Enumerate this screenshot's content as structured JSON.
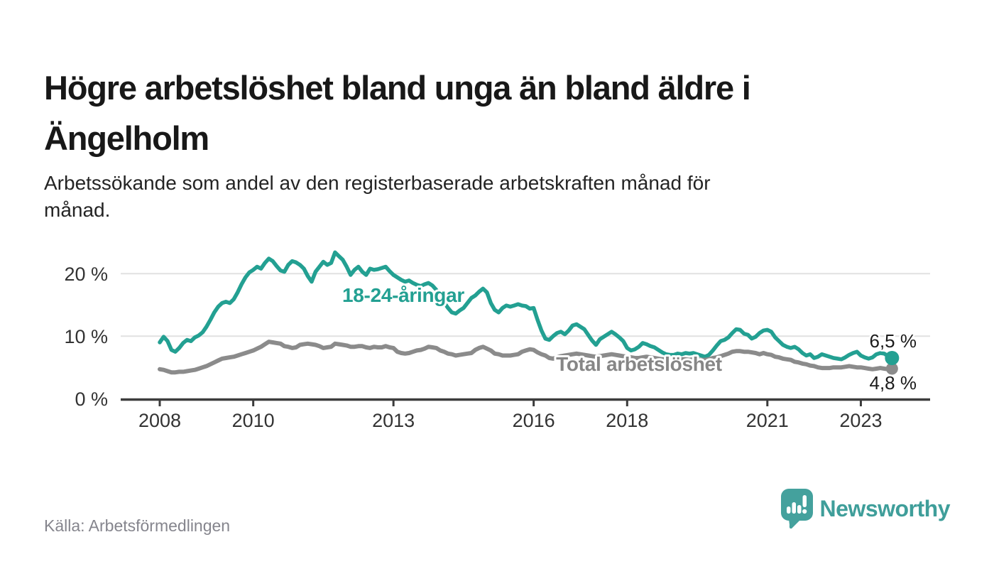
{
  "header": {
    "title": "Högre arbetslöshet bland unga än bland äldre i\nÄngelholm",
    "subtitle": "Arbetssökande som andel av den registerbaserade arbetskraften månad för\nmånad."
  },
  "footer": {
    "source": "Källa: Arbetsförmedlingen",
    "brand": "Newsworthy",
    "brand_color": "#44a19d"
  },
  "chart_data": {
    "type": "line",
    "title": "Högre arbetslöshet bland unga än bland äldre i Ängelholm",
    "subtitle": "Arbetssökande som andel av den registerbaserade arbetskraften månad för månad.",
    "unit": "%",
    "frequency": "monthly",
    "start": "2008-01",
    "end": "2023-09",
    "grid": "horizontal",
    "ylim": [
      0,
      24.5
    ],
    "x_tick_years": [
      2008,
      2010,
      2013,
      2016,
      2018,
      2021,
      2023
    ],
    "y_ticks": [
      {
        "value": 0,
        "label": "0 %"
      },
      {
        "value": 10,
        "label": "10 %"
      },
      {
        "value": 20,
        "label": "20 %"
      }
    ],
    "series": [
      {
        "name": "18-24-åringar",
        "color": "#23a092",
        "end_value": 6.5,
        "end_label": "6,5 %",
        "values": [
          9.0,
          9.9,
          9.2,
          7.8,
          7.5,
          8.1,
          8.9,
          9.4,
          9.2,
          9.8,
          10.1,
          10.6,
          11.5,
          12.6,
          13.8,
          14.7,
          15.3,
          15.5,
          15.3,
          15.9,
          17.0,
          18.3,
          19.4,
          20.2,
          20.6,
          21.1,
          20.8,
          21.7,
          22.4,
          22.0,
          21.2,
          20.5,
          20.3,
          21.4,
          22.0,
          21.8,
          21.4,
          20.8,
          19.6,
          18.7,
          20.3,
          21.1,
          21.9,
          21.4,
          21.7,
          23.4,
          22.8,
          22.2,
          21.1,
          19.8,
          20.6,
          21.1,
          20.3,
          19.8,
          20.8,
          20.6,
          20.7,
          20.9,
          21.1,
          20.4,
          19.8,
          19.4,
          19.0,
          18.7,
          18.9,
          18.5,
          18.2,
          18.0,
          18.3,
          18.5,
          18.1,
          17.4,
          16.4,
          15.4,
          14.5,
          13.8,
          13.6,
          14.1,
          14.5,
          15.3,
          16.1,
          16.5,
          17.1,
          17.6,
          17.0,
          15.3,
          14.2,
          13.8,
          14.5,
          14.9,
          14.7,
          14.9,
          15.1,
          14.9,
          14.8,
          14.4,
          14.5,
          12.6,
          10.9,
          9.6,
          9.4,
          10.0,
          10.5,
          10.7,
          10.3,
          10.9,
          11.7,
          11.9,
          11.5,
          11.1,
          10.2,
          9.3,
          8.6,
          9.5,
          9.9,
          10.3,
          10.7,
          10.3,
          9.8,
          9.2,
          8.1,
          7.7,
          7.9,
          8.3,
          8.9,
          8.7,
          8.4,
          8.2,
          7.8,
          7.4,
          7.1,
          7.0,
          7.0,
          7.2,
          7.1,
          7.3,
          7.2,
          7.3,
          7.1,
          6.9,
          6.7,
          7.0,
          7.7,
          8.5,
          9.2,
          9.4,
          9.8,
          10.5,
          11.1,
          11.0,
          10.4,
          10.2,
          9.6,
          9.9,
          10.5,
          10.9,
          11.0,
          10.7,
          9.8,
          9.2,
          8.6,
          8.3,
          8.1,
          8.3,
          7.9,
          7.3,
          6.9,
          7.1,
          6.5,
          6.7,
          7.1,
          6.9,
          6.7,
          6.5,
          6.4,
          6.3,
          6.6,
          7.0,
          7.3,
          7.5,
          6.9,
          6.6,
          6.4,
          6.6,
          7.1,
          7.3,
          7.2,
          6.8,
          6.5
        ]
      },
      {
        "name": "Total arbetslöshet",
        "color": "#8b8b8b",
        "end_value": 4.8,
        "end_label": "4,8 %",
        "values": [
          4.7,
          4.6,
          4.4,
          4.2,
          4.2,
          4.3,
          4.3,
          4.4,
          4.5,
          4.6,
          4.8,
          5.0,
          5.2,
          5.5,
          5.8,
          6.1,
          6.4,
          6.5,
          6.6,
          6.7,
          6.9,
          7.1,
          7.3,
          7.5,
          7.7,
          8.0,
          8.3,
          8.7,
          9.1,
          9.0,
          8.9,
          8.8,
          8.4,
          8.3,
          8.1,
          8.2,
          8.6,
          8.7,
          8.8,
          8.7,
          8.6,
          8.4,
          8.1,
          8.2,
          8.3,
          8.8,
          8.7,
          8.6,
          8.5,
          8.3,
          8.3,
          8.4,
          8.4,
          8.2,
          8.1,
          8.3,
          8.2,
          8.2,
          8.4,
          8.2,
          8.1,
          7.5,
          7.3,
          7.2,
          7.3,
          7.5,
          7.7,
          7.8,
          8.0,
          8.3,
          8.2,
          8.1,
          7.7,
          7.5,
          7.2,
          7.1,
          6.9,
          7.0,
          7.1,
          7.2,
          7.3,
          7.8,
          8.1,
          8.3,
          8.0,
          7.7,
          7.2,
          7.1,
          6.9,
          6.9,
          6.9,
          7.0,
          7.1,
          7.5,
          7.7,
          7.9,
          7.8,
          7.4,
          7.1,
          6.9,
          6.5,
          6.4,
          6.6,
          6.8,
          6.9,
          7.0,
          7.1,
          7.2,
          7.1,
          7.0,
          6.9,
          6.8,
          6.7,
          6.8,
          6.9,
          7.0,
          7.1,
          7.0,
          6.9,
          6.8,
          6.7,
          6.6,
          6.5,
          6.5,
          6.6,
          6.7,
          6.6,
          6.5,
          6.4,
          6.3,
          6.3,
          6.4,
          6.4,
          6.4,
          6.3,
          6.3,
          6.2,
          6.3,
          6.3,
          6.2,
          6.2,
          6.3,
          6.5,
          6.6,
          6.8,
          7.0,
          7.2,
          7.5,
          7.6,
          7.6,
          7.5,
          7.5,
          7.4,
          7.3,
          7.1,
          7.3,
          7.1,
          7.0,
          6.7,
          6.6,
          6.4,
          6.3,
          6.2,
          5.9,
          5.8,
          5.6,
          5.5,
          5.3,
          5.2,
          5.0,
          4.9,
          4.9,
          4.9,
          5.0,
          5.0,
          5.0,
          5.1,
          5.2,
          5.1,
          5.0,
          5.0,
          4.9,
          4.8,
          4.7,
          4.8,
          4.9,
          4.8,
          4.7,
          4.8
        ]
      }
    ],
    "source": "Källa: Arbetsförmedlingen"
  }
}
